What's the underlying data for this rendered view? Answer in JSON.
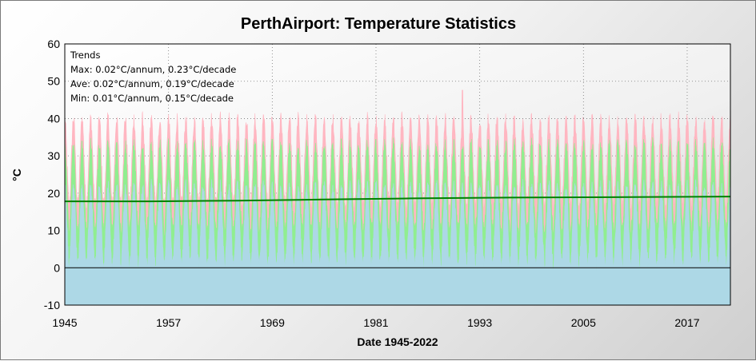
{
  "chart_data": {
    "type": "area",
    "title": "PerthAirport: Temperature Statistics",
    "xlabel": "Date 1945-2022",
    "ylabel": "°C",
    "xlim": [
      1945,
      2022
    ],
    "ylim": [
      -10,
      60
    ],
    "xticks": [
      "1945",
      "1957",
      "1969",
      "1981",
      "1993",
      "2005",
      "2017"
    ],
    "yticks": [
      "60",
      "50",
      "40",
      "30",
      "20",
      "10",
      "0",
      "-10"
    ],
    "grid": true,
    "series": [
      {
        "name": "Max",
        "color": "#ffb6c1",
        "seasonal_low": 17,
        "seasonal_high": 40,
        "peak_max": 47.6
      },
      {
        "name": "Ave",
        "color": "#90ee90",
        "seasonal_low": 10,
        "seasonal_high": 33
      },
      {
        "name": "Min",
        "color": "#add8e6",
        "seasonal_low": 1,
        "seasonal_high": 22
      }
    ],
    "trend_line": {
      "color": "#008000",
      "points": [
        [
          1945,
          17.8
        ],
        [
          1955,
          17.8
        ],
        [
          1965,
          18.0
        ],
        [
          1975,
          18.3
        ],
        [
          1985,
          18.6
        ],
        [
          1995,
          18.8
        ],
        [
          2005,
          18.9
        ],
        [
          2015,
          19.0
        ],
        [
          2022,
          19.1
        ]
      ]
    },
    "annotations": {
      "heading": "Trends",
      "lines": [
        "Max: 0.02°C/annum, 0.23°C/decade",
        "Ave: 0.02°C/annum, 0.19°C/decade",
        "Min: 0.01°C/annum, 0.15°C/decade"
      ]
    }
  }
}
